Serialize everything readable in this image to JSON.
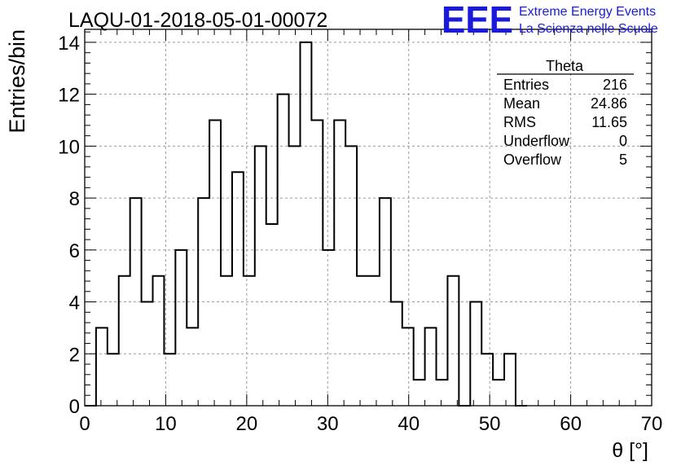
{
  "chart_data": {
    "type": "histogram",
    "title": "LAQU-01-2018-05-01-00072",
    "xlabel": "θ [°]",
    "ylabel": "Entries/bin",
    "xlim": [
      0,
      70
    ],
    "ylim": [
      0,
      14.5
    ],
    "x_ticks": [
      0,
      10,
      20,
      30,
      40,
      50,
      60,
      70
    ],
    "y_ticks": [
      0,
      2,
      4,
      6,
      8,
      10,
      12,
      14
    ],
    "grid": true,
    "bin_width": 1.4,
    "bins": [
      {
        "x_low": 0.0,
        "value": 0
      },
      {
        "x_low": 1.4,
        "value": 3
      },
      {
        "x_low": 2.8,
        "value": 2
      },
      {
        "x_low": 4.2,
        "value": 5
      },
      {
        "x_low": 5.6,
        "value": 8
      },
      {
        "x_low": 7.0,
        "value": 4
      },
      {
        "x_low": 8.4,
        "value": 5
      },
      {
        "x_low": 9.8,
        "value": 2
      },
      {
        "x_low": 11.2,
        "value": 6
      },
      {
        "x_low": 12.6,
        "value": 3
      },
      {
        "x_low": 14.0,
        "value": 8
      },
      {
        "x_low": 15.4,
        "value": 11
      },
      {
        "x_low": 16.8,
        "value": 5
      },
      {
        "x_low": 18.2,
        "value": 9
      },
      {
        "x_low": 19.6,
        "value": 5
      },
      {
        "x_low": 21.0,
        "value": 10
      },
      {
        "x_low": 22.4,
        "value": 7
      },
      {
        "x_low": 23.8,
        "value": 12
      },
      {
        "x_low": 25.2,
        "value": 10
      },
      {
        "x_low": 26.6,
        "value": 14
      },
      {
        "x_low": 28.0,
        "value": 11
      },
      {
        "x_low": 29.4,
        "value": 6
      },
      {
        "x_low": 30.8,
        "value": 11
      },
      {
        "x_low": 32.2,
        "value": 10
      },
      {
        "x_low": 33.6,
        "value": 5
      },
      {
        "x_low": 35.0,
        "value": 5
      },
      {
        "x_low": 36.4,
        "value": 8
      },
      {
        "x_low": 37.8,
        "value": 4
      },
      {
        "x_low": 39.2,
        "value": 3
      },
      {
        "x_low": 40.6,
        "value": 1
      },
      {
        "x_low": 42.0,
        "value": 3
      },
      {
        "x_low": 43.4,
        "value": 1
      },
      {
        "x_low": 44.8,
        "value": 5
      },
      {
        "x_low": 46.2,
        "value": 0
      },
      {
        "x_low": 47.6,
        "value": 4
      },
      {
        "x_low": 49.0,
        "value": 2
      },
      {
        "x_low": 50.4,
        "value": 1
      },
      {
        "x_low": 51.8,
        "value": 2
      },
      {
        "x_low": 53.2,
        "value": 0
      }
    ],
    "stats_box": {
      "title": "Theta",
      "rows": [
        {
          "label": "Entries",
          "value": "216"
        },
        {
          "label": "Mean",
          "value": "24.86"
        },
        {
          "label": "RMS",
          "value": "11.65"
        },
        {
          "label": "Underflow",
          "value": "0"
        },
        {
          "label": "Overflow",
          "value": "5"
        }
      ]
    },
    "logo": {
      "mark": "EEE",
      "line1": "Extreme Energy Events",
      "line2": "La Scienza nelle Scuole"
    }
  },
  "colors": {
    "line": "#000000",
    "grid": "#9a9a9a",
    "logo": "#1a1adb"
  }
}
